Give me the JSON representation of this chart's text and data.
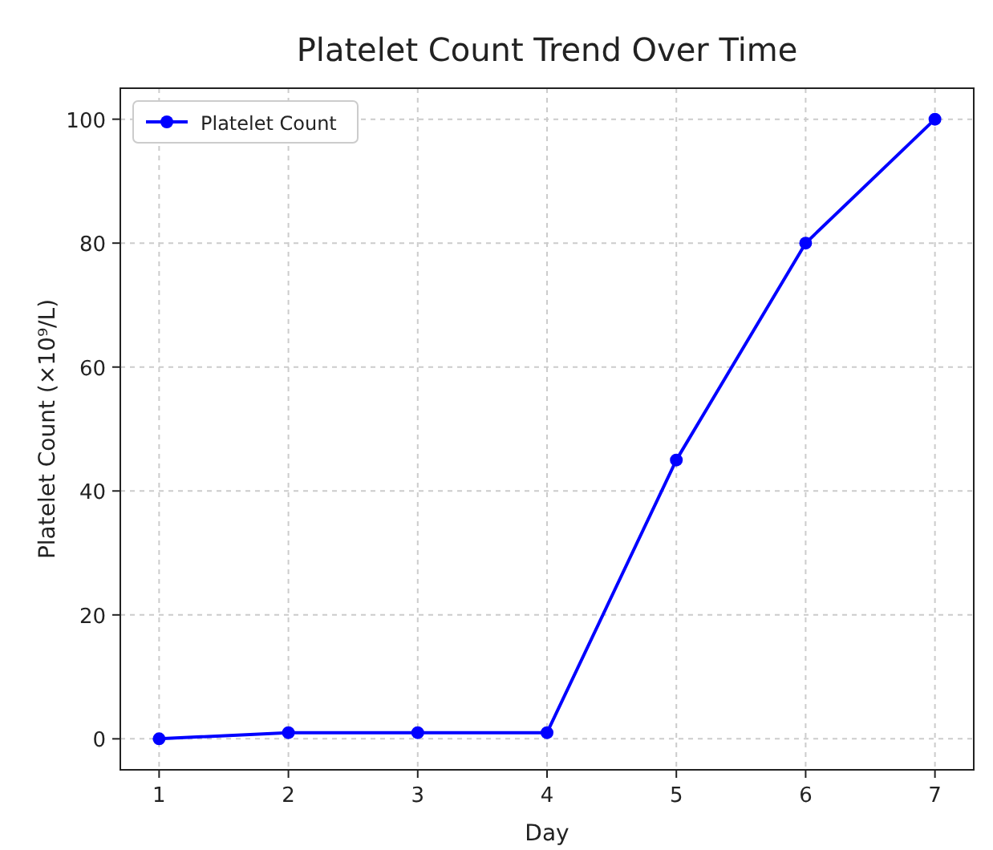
{
  "chart_data": {
    "type": "line",
    "title": "Platelet Count Trend Over Time",
    "xlabel": "Day",
    "ylabel": "Platelet Count (×10⁹/L)",
    "x": [
      1,
      2,
      3,
      4,
      5,
      6,
      7
    ],
    "series": [
      {
        "name": "Platelet Count",
        "color": "#0000ff",
        "values": [
          0,
          1,
          1,
          1,
          45,
          80,
          100
        ]
      }
    ],
    "xlim": [
      0.7,
      7.3
    ],
    "xticks": [
      1,
      2,
      3,
      4,
      5,
      6,
      7
    ],
    "ylim": [
      -5,
      105
    ],
    "yticks": [
      0,
      20,
      40,
      60,
      80,
      100
    ],
    "grid": true,
    "legend": "top left",
    "marker": "circle",
    "line_style": "solid"
  }
}
